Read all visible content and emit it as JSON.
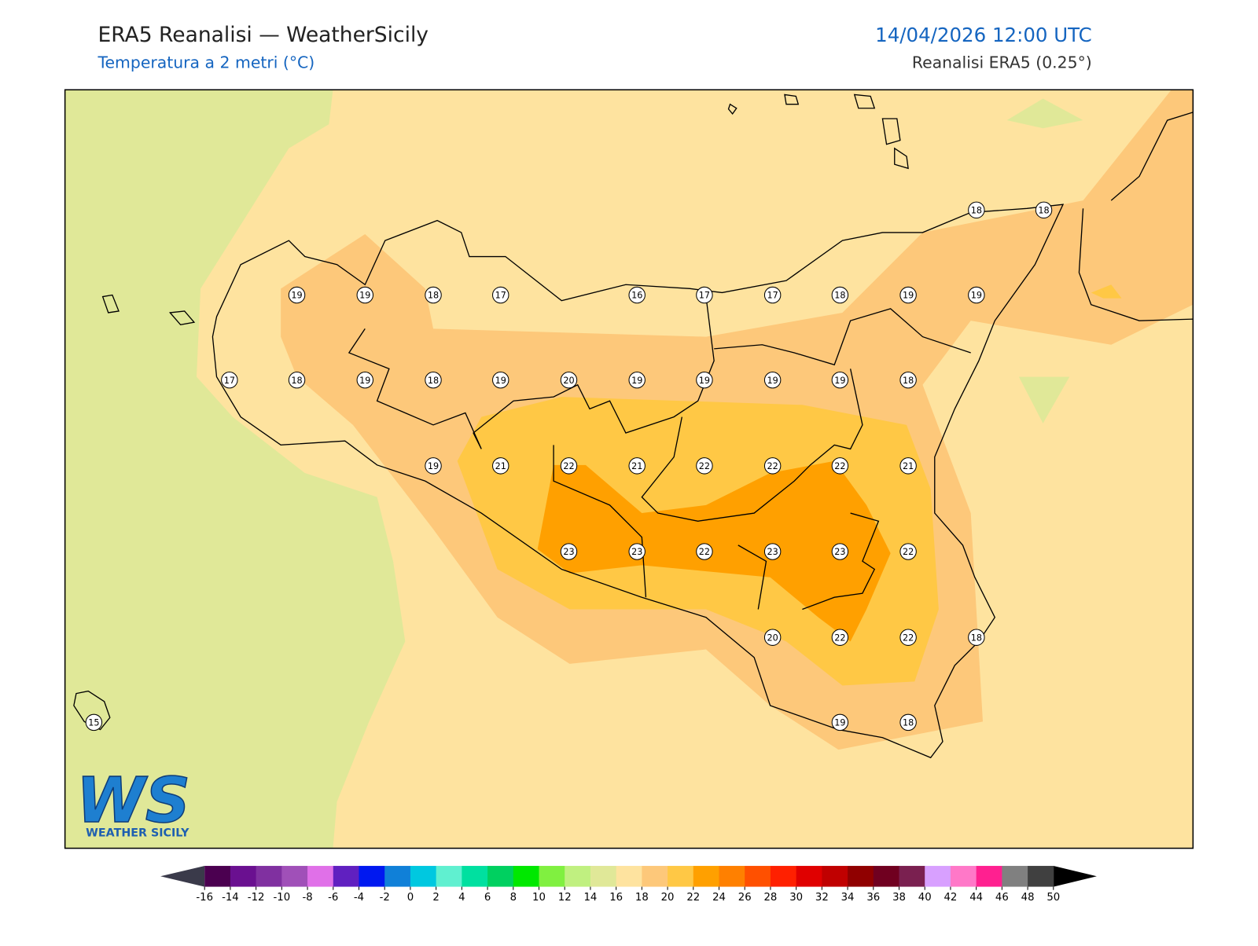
{
  "header": {
    "title": "ERA5 Reanalisi — WeatherSicily",
    "subtitle": "Temperatura a 2 metri (°C)",
    "datetime": "14/04/2026 12:00 UTC",
    "source": "Reanalisi ERA5 (0.25°)"
  },
  "stations": [
    19,
    19,
    18,
    17,
    16,
    17,
    17,
    18,
    19,
    19,
    18,
    18,
    17,
    18,
    19,
    18,
    19,
    20,
    19,
    19,
    19,
    19,
    18,
    19,
    21,
    22,
    21,
    22,
    22,
    22,
    21,
    23,
    23,
    22,
    23,
    23,
    22,
    20,
    22,
    22,
    18,
    15,
    19,
    18
  ],
  "logo": {
    "mark": "WS",
    "text": "WEATHER SICILY"
  },
  "colorbar": {
    "ticks": [
      -16,
      -14,
      -12,
      -10,
      -8,
      -6,
      -4,
      -2,
      0,
      2,
      4,
      6,
      8,
      10,
      12,
      14,
      16,
      18,
      20,
      22,
      24,
      26,
      28,
      30,
      32,
      34,
      36,
      38,
      40,
      42,
      44,
      46,
      48,
      50
    ],
    "colors": [
      "#4b0050",
      "#6a1090",
      "#8030a0",
      "#a050b8",
      "#e070e8",
      "#6020c0",
      "#0018f0",
      "#1080d8",
      "#00c8e0",
      "#60f0d0",
      "#00e0a0",
      "#00d060",
      "#00e800",
      "#80f040",
      "#c0f080",
      "#e0e898",
      "#fee39f",
      "#fdc87a",
      "#ffc845",
      "#ffa000",
      "#ff8000",
      "#ff5000",
      "#ff2000",
      "#e00000",
      "#c00000",
      "#900000",
      "#700020",
      "#7a2050",
      "#d8a0ff",
      "#ff78c8",
      "#ff2090",
      "#808080",
      "#404040"
    ],
    "under": "#3a3a4a",
    "over": "#000000"
  }
}
